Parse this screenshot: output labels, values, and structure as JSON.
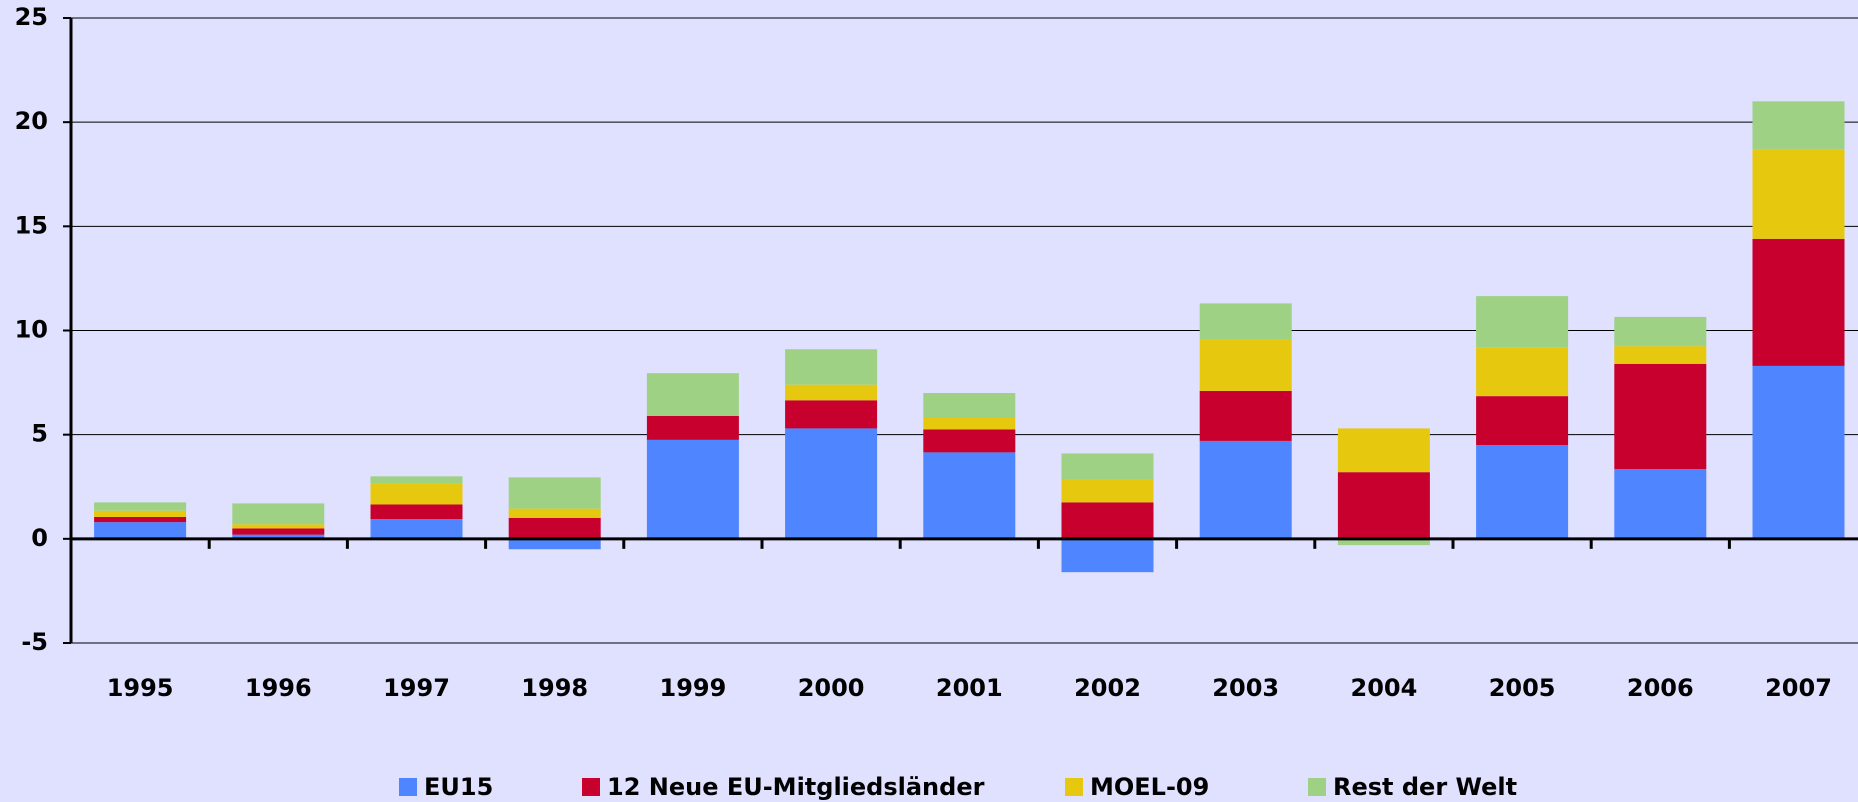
{
  "chart_data": {
    "type": "stacked-bar",
    "categories": [
      "1995",
      "1996",
      "1997",
      "1998",
      "1999",
      "2000",
      "2001",
      "2002",
      "2003",
      "2004",
      "2005",
      "2006",
      "2007"
    ],
    "series": [
      {
        "name": "EU15",
        "color": "#4f86ff",
        "values": [
          0.8,
          0.2,
          0.95,
          -0.5,
          4.75,
          5.3,
          4.15,
          -1.6,
          4.7,
          0,
          4.5,
          3.35,
          8.3
        ]
      },
      {
        "name": "12 Neue EU-Mitgliedsländer",
        "color": "#c8002d",
        "values": [
          0.25,
          0.3,
          0.7,
          1.0,
          1.15,
          1.35,
          1.1,
          1.75,
          2.4,
          3.2,
          2.35,
          5.05,
          6.1
        ]
      },
      {
        "name": "MOEL-09",
        "color": "#e6c90f",
        "values": [
          0.3,
          0.2,
          1.0,
          0.45,
          0,
          0.75,
          0.55,
          1.1,
          2.45,
          2.1,
          2.35,
          0.85,
          4.3
        ]
      },
      {
        "name": "Rest der Welt",
        "color": "#9ed184",
        "values": [
          0.4,
          1.0,
          0.35,
          1.5,
          2.05,
          1.7,
          1.2,
          1.25,
          1.75,
          -0.3,
          2.45,
          1.4,
          2.3
        ]
      }
    ],
    "ylim": [
      -5,
      25
    ],
    "yticks": [
      -5,
      0,
      5,
      10,
      15,
      20,
      25
    ],
    "grid": true,
    "legend": "bottom"
  }
}
